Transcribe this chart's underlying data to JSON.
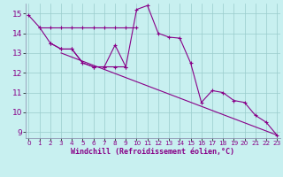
{
  "x_main": [
    0,
    1,
    2,
    3,
    4,
    5,
    6,
    7,
    8,
    9,
    10,
    11,
    12,
    13,
    14,
    15,
    16,
    17,
    18,
    19,
    20,
    21,
    22,
    23
  ],
  "y_main": [
    14.9,
    14.3,
    13.5,
    13.2,
    13.2,
    12.5,
    12.3,
    12.3,
    13.4,
    12.3,
    15.2,
    15.4,
    14.0,
    13.8,
    13.75,
    12.5,
    10.5,
    11.1,
    11.0,
    10.6,
    10.5,
    9.85,
    9.5,
    8.85
  ],
  "x_flat": [
    1,
    2,
    3,
    4,
    5,
    6,
    7,
    8,
    9,
    10
  ],
  "y_flat": [
    14.3,
    14.3,
    14.3,
    14.3,
    14.3,
    14.3,
    14.3,
    14.3,
    14.3,
    14.3
  ],
  "x_curve2": [
    2,
    3,
    4,
    5,
    6,
    7,
    8,
    9
  ],
  "y_curve2": [
    13.5,
    13.2,
    13.2,
    12.5,
    12.3,
    12.3,
    12.3,
    12.3
  ],
  "trend_x": [
    3,
    23
  ],
  "trend_y": [
    13.0,
    8.85
  ],
  "color": "#880088",
  "background_color": "#c8f0f0",
  "grid_color": "#99cccc",
  "xlabel": "Windchill (Refroidissement éolien,°C)",
  "xlim": [
    0,
    23
  ],
  "ylim": [
    8.7,
    15.5
  ],
  "yticks": [
    9,
    10,
    11,
    12,
    13,
    14,
    15
  ],
  "xticks": [
    0,
    1,
    2,
    3,
    4,
    5,
    6,
    7,
    8,
    9,
    10,
    11,
    12,
    13,
    14,
    15,
    16,
    17,
    18,
    19,
    20,
    21,
    22,
    23
  ]
}
